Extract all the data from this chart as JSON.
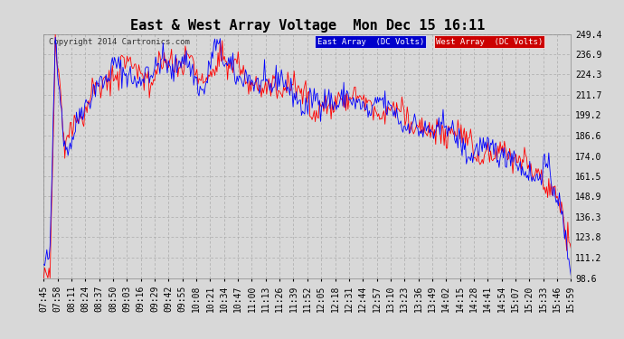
{
  "title": "East & West Array Voltage  Mon Dec 15 16:11",
  "copyright": "Copyright 2014 Cartronics.com",
  "legend_east": "East Array  (DC Volts)",
  "legend_west": "West Array  (DC Volts)",
  "east_color": "#0000FF",
  "west_color": "#FF0000",
  "legend_east_bg": "#0000CC",
  "legend_west_bg": "#CC0000",
  "ylim_min": 98.6,
  "ylim_max": 249.4,
  "yticks": [
    98.6,
    111.2,
    123.8,
    136.3,
    148.9,
    161.5,
    174.0,
    186.6,
    199.2,
    211.7,
    224.3,
    236.9,
    249.4
  ],
  "ytick_labels": [
    "98.6",
    "111.2",
    "123.8",
    "136.3",
    "148.9",
    "161.5",
    "174.0",
    "186.6",
    "199.2",
    "211.7",
    "224.3",
    "236.9",
    "249.4"
  ],
  "bg_color": "#D8D8D8",
  "plot_bg_color": "#D8D8D8",
  "grid_color": "#AAAAAA",
  "title_fontsize": 11,
  "axis_fontsize": 7,
  "copyright_fontsize": 6.5,
  "xtick_labels": [
    "07:45",
    "07:58",
    "08:11",
    "08:24",
    "08:37",
    "08:50",
    "09:03",
    "09:16",
    "09:29",
    "09:42",
    "09:55",
    "10:08",
    "10:21",
    "10:34",
    "10:47",
    "11:00",
    "11:13",
    "11:26",
    "11:39",
    "11:52",
    "12:05",
    "12:18",
    "12:31",
    "12:44",
    "12:57",
    "13:10",
    "13:23",
    "13:36",
    "13:49",
    "14:02",
    "14:15",
    "14:28",
    "14:41",
    "14:54",
    "15:07",
    "15:20",
    "15:33",
    "15:46",
    "15:59"
  ]
}
